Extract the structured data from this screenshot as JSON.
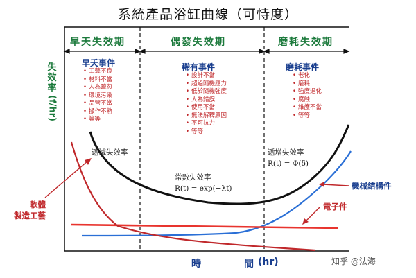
{
  "title": "系統產品浴缸曲線（可恃度）",
  "phases": {
    "early": "早天失效期",
    "random": "偶發失效期",
    "wearout": "磨耗失效期"
  },
  "y_axis_label": {
    "chars": [
      "失",
      "效",
      "率"
    ],
    "unit": "(f/hr)"
  },
  "x_axis_label": {
    "time": "時",
    "interval": "間",
    "unit": "(hr)"
  },
  "early": {
    "heading": "早夭事件",
    "causes": [
      "工藝不良",
      "材料不當",
      "人為疏忽",
      "環境污染",
      "品管不當",
      "操作不熟",
      "等等"
    ],
    "curve_label": "遞減失效率"
  },
  "random": {
    "heading": "稀有事件",
    "causes": [
      "設計不當",
      "超過隨機應力",
      "低於隨機強度",
      "人為錯誤",
      "使用不當",
      "無法解釋原因",
      "不可抗力",
      "等等"
    ],
    "curve_label": "常數失效率",
    "formula": "R(t) = exp(−λt)"
  },
  "wearout": {
    "heading": "磨耗事件",
    "causes": [
      "老化",
      "磨耗",
      "強度退化",
      "腐蝕",
      "維護不當",
      "等等"
    ],
    "curve_label": "遞增失效率",
    "formula": "R(t) = Φ(δ)"
  },
  "side_labels": {
    "software": "軟體",
    "manufacturing": "製造工藝",
    "mechanical": "機械結構件",
    "electronic": "電子件"
  },
  "watermark": "知乎 @法海",
  "colors": {
    "green": "#1c7a3c",
    "navy": "#1a3f8f",
    "red": "#c0282b",
    "red_line": "#e8342e",
    "blue_line": "#2a6fd6",
    "black_line": "#111111"
  }
}
